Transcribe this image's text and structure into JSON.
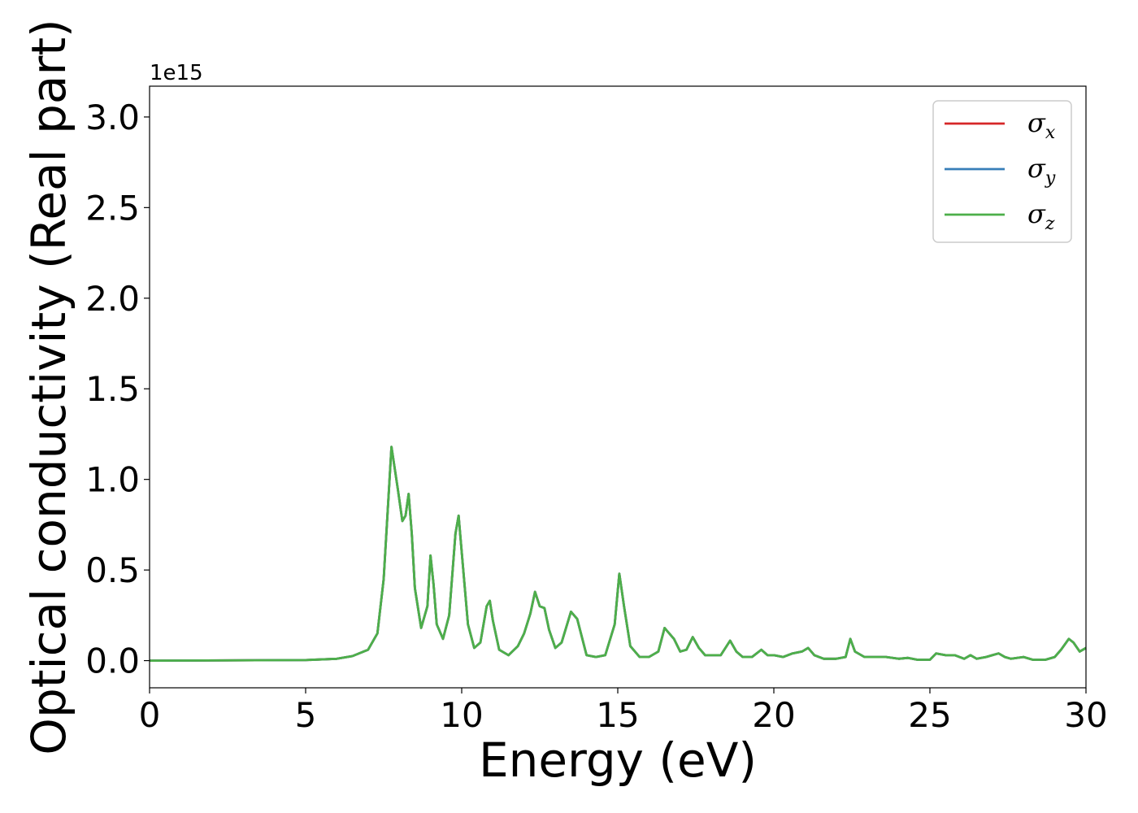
{
  "chart_data": {
    "type": "line",
    "title": "",
    "xlabel": "Energy (eV)",
    "ylabel": "Optical conductivity (Real part)",
    "y_offset_label": "1e15",
    "xlim": [
      0,
      30
    ],
    "ylim": [
      -0.15,
      3.17
    ],
    "x_ticks": [
      0,
      5,
      10,
      15,
      20,
      25,
      30
    ],
    "x_tick_labels": [
      "0",
      "5",
      "10",
      "15",
      "20",
      "25",
      "30"
    ],
    "y_ticks": [
      0.0,
      0.5,
      1.0,
      1.5,
      2.0,
      2.5,
      3.0
    ],
    "y_tick_labels": [
      "0.0",
      "0.5",
      "1.0",
      "1.5",
      "2.0",
      "2.5",
      "3.0"
    ],
    "grid": false,
    "legend_position": "top-right",
    "series": [
      {
        "name": "σx",
        "symbol": "σ",
        "subscript": "x",
        "color": "#d62728",
        "x": [
          0,
          5,
          6,
          6.5,
          7,
          7.3,
          7.5,
          7.75,
          7.95,
          8.1,
          8.2,
          8.3,
          8.4,
          8.5,
          8.7,
          8.9,
          9.0,
          9.1,
          9.2,
          9.4,
          9.6,
          9.8,
          9.9,
          10.0,
          10.2,
          10.4,
          10.6,
          10.8,
          10.9,
          11.0,
          11.2,
          11.5,
          11.8,
          12.0,
          12.2,
          12.35,
          12.5,
          12.65,
          12.8,
          13.0,
          13.2,
          13.5,
          13.7,
          14.0,
          14.3,
          14.6,
          14.9,
          15.05,
          15.2,
          15.4,
          15.7,
          16.0,
          16.3,
          16.5,
          16.6,
          16.8,
          17.0,
          17.2,
          17.4,
          17.6,
          17.8,
          18.0,
          18.3,
          18.6,
          18.8,
          19.0,
          19.3,
          19.6,
          19.8,
          20.0,
          20.3,
          20.6,
          20.9,
          21.1,
          21.3,
          21.6,
          22.0,
          22.3,
          22.45,
          22.6,
          22.9,
          23.2,
          23.6,
          24.0,
          24.3,
          24.6,
          25.0,
          25.2,
          25.5,
          25.8,
          26.1,
          26.3,
          26.5,
          26.8,
          27.0,
          27.2,
          27.4,
          27.6,
          28.0,
          28.3,
          28.7,
          29.0,
          29.2,
          29.45,
          29.6,
          29.8,
          30.0
        ],
        "y": [
          0.0,
          0.003,
          0.01,
          0.025,
          0.06,
          0.15,
          0.45,
          1.18,
          0.95,
          0.77,
          0.8,
          0.92,
          0.7,
          0.4,
          0.18,
          0.3,
          0.58,
          0.42,
          0.2,
          0.12,
          0.25,
          0.7,
          0.8,
          0.6,
          0.2,
          0.07,
          0.1,
          0.3,
          0.33,
          0.22,
          0.06,
          0.03,
          0.08,
          0.15,
          0.26,
          0.38,
          0.3,
          0.29,
          0.17,
          0.07,
          0.1,
          0.27,
          0.23,
          0.03,
          0.02,
          0.03,
          0.2,
          0.48,
          0.3,
          0.08,
          0.02,
          0.02,
          0.05,
          0.18,
          0.16,
          0.12,
          0.05,
          0.06,
          0.13,
          0.07,
          0.03,
          0.03,
          0.03,
          0.11,
          0.05,
          0.02,
          0.02,
          0.06,
          0.03,
          0.03,
          0.02,
          0.04,
          0.05,
          0.07,
          0.03,
          0.01,
          0.01,
          0.02,
          0.12,
          0.05,
          0.02,
          0.02,
          0.02,
          0.01,
          0.015,
          0.005,
          0.005,
          0.04,
          0.03,
          0.03,
          0.01,
          0.03,
          0.01,
          0.02,
          0.03,
          0.04,
          0.02,
          0.01,
          0.02,
          0.005,
          0.005,
          0.02,
          0.06,
          0.12,
          0.1,
          0.05,
          0.07
        ]
      },
      {
        "name": "σy",
        "symbol": "σ",
        "subscript": "y",
        "color": "#377eb8",
        "x": [
          0,
          5,
          6,
          6.5,
          7,
          7.3,
          7.5,
          7.75,
          7.95,
          8.1,
          8.2,
          8.3,
          8.4,
          8.5,
          8.7,
          8.9,
          9.0,
          9.1,
          9.2,
          9.4,
          9.6,
          9.8,
          9.9,
          10.0,
          10.2,
          10.4,
          10.6,
          10.8,
          10.9,
          11.0,
          11.2,
          11.5,
          11.8,
          12.0,
          12.2,
          12.35,
          12.5,
          12.65,
          12.8,
          13.0,
          13.2,
          13.5,
          13.7,
          14.0,
          14.3,
          14.6,
          14.9,
          15.05,
          15.2,
          15.4,
          15.7,
          16.0,
          16.3,
          16.5,
          16.6,
          16.8,
          17.0,
          17.2,
          17.4,
          17.6,
          17.8,
          18.0,
          18.3,
          18.6,
          18.8,
          19.0,
          19.3,
          19.6,
          19.8,
          20.0,
          20.3,
          20.6,
          20.9,
          21.1,
          21.3,
          21.6,
          22.0,
          22.3,
          22.45,
          22.6,
          22.9,
          23.2,
          23.6,
          24.0,
          24.3,
          24.6,
          25.0,
          25.2,
          25.5,
          25.8,
          26.1,
          26.3,
          26.5,
          26.8,
          27.0,
          27.2,
          27.4,
          27.6,
          28.0,
          28.3,
          28.7,
          29.0,
          29.2,
          29.45,
          29.6,
          29.8,
          30.0
        ],
        "y": [
          0.0,
          0.003,
          0.01,
          0.025,
          0.06,
          0.15,
          0.45,
          1.18,
          0.95,
          0.77,
          0.8,
          0.92,
          0.7,
          0.4,
          0.18,
          0.3,
          0.58,
          0.42,
          0.2,
          0.12,
          0.25,
          0.7,
          0.8,
          0.6,
          0.2,
          0.07,
          0.1,
          0.3,
          0.33,
          0.22,
          0.06,
          0.03,
          0.08,
          0.15,
          0.26,
          0.38,
          0.3,
          0.29,
          0.17,
          0.07,
          0.1,
          0.27,
          0.23,
          0.03,
          0.02,
          0.03,
          0.2,
          0.48,
          0.3,
          0.08,
          0.02,
          0.02,
          0.05,
          0.18,
          0.16,
          0.12,
          0.05,
          0.06,
          0.13,
          0.07,
          0.03,
          0.03,
          0.03,
          0.11,
          0.05,
          0.02,
          0.02,
          0.06,
          0.03,
          0.03,
          0.02,
          0.04,
          0.05,
          0.07,
          0.03,
          0.01,
          0.01,
          0.02,
          0.12,
          0.05,
          0.02,
          0.02,
          0.02,
          0.01,
          0.015,
          0.005,
          0.005,
          0.04,
          0.03,
          0.03,
          0.01,
          0.03,
          0.01,
          0.02,
          0.03,
          0.04,
          0.02,
          0.01,
          0.02,
          0.005,
          0.005,
          0.02,
          0.06,
          0.12,
          0.1,
          0.05,
          0.07
        ]
      },
      {
        "name": "σz",
        "symbol": "σ",
        "subscript": "z",
        "color": "#4daf4a",
        "x": [
          0,
          5,
          6,
          6.5,
          7,
          7.3,
          7.5,
          7.75,
          7.95,
          8.1,
          8.2,
          8.3,
          8.4,
          8.5,
          8.7,
          8.9,
          9.0,
          9.1,
          9.2,
          9.4,
          9.6,
          9.8,
          9.9,
          10.0,
          10.2,
          10.4,
          10.6,
          10.8,
          10.9,
          11.0,
          11.2,
          11.5,
          11.8,
          12.0,
          12.2,
          12.35,
          12.5,
          12.65,
          12.8,
          13.0,
          13.2,
          13.5,
          13.7,
          14.0,
          14.3,
          14.6,
          14.9,
          15.05,
          15.2,
          15.4,
          15.7,
          16.0,
          16.3,
          16.5,
          16.6,
          16.8,
          17.0,
          17.2,
          17.4,
          17.6,
          17.8,
          18.0,
          18.3,
          18.6,
          18.8,
          19.0,
          19.3,
          19.6,
          19.8,
          20.0,
          20.3,
          20.6,
          20.9,
          21.1,
          21.3,
          21.6,
          22.0,
          22.3,
          22.45,
          22.6,
          22.9,
          23.2,
          23.6,
          24.0,
          24.3,
          24.6,
          25.0,
          25.2,
          25.5,
          25.8,
          26.1,
          26.3,
          26.5,
          26.8,
          27.0,
          27.2,
          27.4,
          27.6,
          28.0,
          28.3,
          28.7,
          29.0,
          29.2,
          29.45,
          29.6,
          29.8,
          30.0
        ],
        "y": [
          0.0,
          0.003,
          0.01,
          0.025,
          0.06,
          0.15,
          0.45,
          1.18,
          0.95,
          0.77,
          0.8,
          0.92,
          0.7,
          0.4,
          0.18,
          0.3,
          0.58,
          0.42,
          0.2,
          0.12,
          0.25,
          0.7,
          0.8,
          0.6,
          0.2,
          0.07,
          0.1,
          0.3,
          0.33,
          0.22,
          0.06,
          0.03,
          0.08,
          0.15,
          0.26,
          0.38,
          0.3,
          0.29,
          0.17,
          0.07,
          0.1,
          0.27,
          0.23,
          0.03,
          0.02,
          0.03,
          0.2,
          0.48,
          0.3,
          0.08,
          0.02,
          0.02,
          0.05,
          0.18,
          0.16,
          0.12,
          0.05,
          0.06,
          0.13,
          0.07,
          0.03,
          0.03,
          0.03,
          0.11,
          0.05,
          0.02,
          0.02,
          0.06,
          0.03,
          0.03,
          0.02,
          0.04,
          0.05,
          0.07,
          0.03,
          0.01,
          0.01,
          0.02,
          0.12,
          0.05,
          0.02,
          0.02,
          0.02,
          0.01,
          0.015,
          0.005,
          0.005,
          0.04,
          0.03,
          0.03,
          0.01,
          0.03,
          0.01,
          0.02,
          0.03,
          0.04,
          0.02,
          0.01,
          0.02,
          0.005,
          0.005,
          0.02,
          0.06,
          0.12,
          0.1,
          0.05,
          0.07
        ]
      }
    ]
  }
}
